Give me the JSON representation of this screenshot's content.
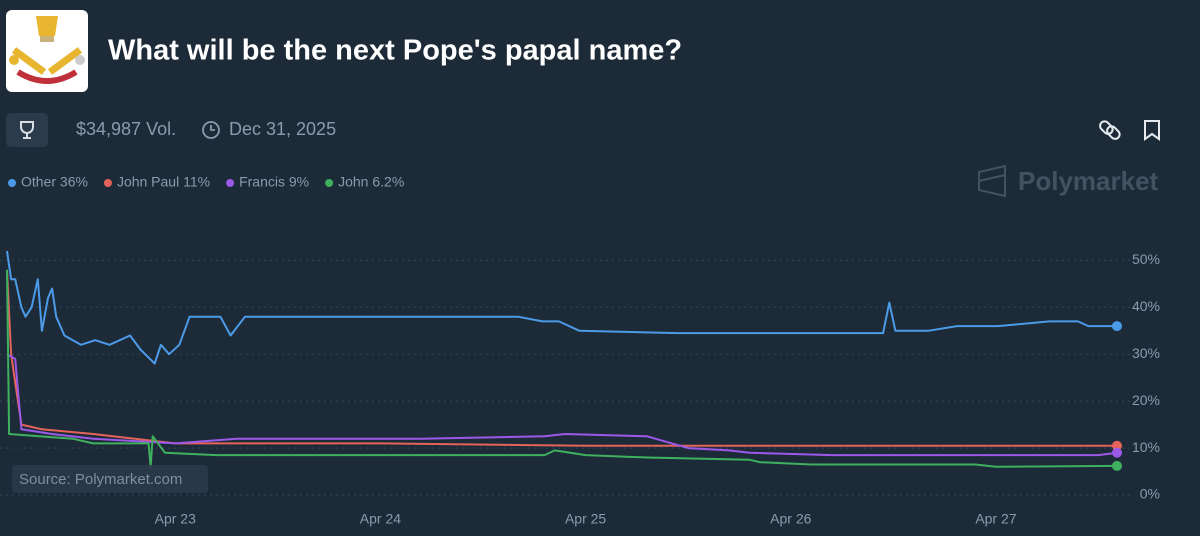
{
  "header": {
    "title": "What will be the next Pope's papal name?",
    "volume": "$34,987 Vol.",
    "end_date": "Dec 31, 2025",
    "watermark": "Polymarket",
    "source": "Source: Polymarket.com"
  },
  "chart_data": {
    "type": "line",
    "xlim": [
      22.18,
      27.59
    ],
    "xticks": [
      {
        "value": 23,
        "label": "Apr 23"
      },
      {
        "value": 24,
        "label": "Apr 24"
      },
      {
        "value": 25,
        "label": "Apr 25"
      },
      {
        "value": 26,
        "label": "Apr 26"
      },
      {
        "value": 27,
        "label": "Apr 27"
      }
    ],
    "ylim": [
      0,
      52
    ],
    "yticks": [
      {
        "value": 0,
        "label": "0%"
      },
      {
        "value": 10,
        "label": "10%"
      },
      {
        "value": 20,
        "label": "20%"
      },
      {
        "value": 30,
        "label": "30%"
      },
      {
        "value": 40,
        "label": "40%"
      },
      {
        "value": 50,
        "label": "50%"
      }
    ],
    "grid": true,
    "series": [
      {
        "name": "Other 36%",
        "color": "#4c9be8",
        "x": [
          22.18,
          22.2,
          22.22,
          22.25,
          22.27,
          22.3,
          22.33,
          22.35,
          22.38,
          22.4,
          22.42,
          22.46,
          22.54,
          22.61,
          22.68,
          22.78,
          22.83,
          22.9,
          22.93,
          22.97,
          23.02,
          23.07,
          23.22,
          23.27,
          23.34,
          23.51,
          24.09,
          24.67,
          24.79,
          24.87,
          24.97,
          25.45,
          26.45,
          26.48,
          26.51,
          26.67,
          26.81,
          27.01,
          27.26,
          27.4,
          27.45,
          27.59
        ],
        "values": [
          52,
          46,
          46,
          40,
          38,
          40,
          46,
          35,
          42,
          44,
          38,
          34,
          32,
          33,
          32,
          34,
          31,
          28,
          32,
          30,
          32,
          38,
          38,
          34,
          38,
          38,
          38,
          38,
          37,
          37,
          35,
          34.5,
          34.5,
          41,
          35,
          35,
          36,
          36,
          37,
          37,
          36,
          36
        ]
      },
      {
        "name": "John Paul 11%",
        "color": "#e5635a",
        "x": [
          22.18,
          22.2,
          22.25,
          22.35,
          22.6,
          23.0,
          24.0,
          25.0,
          26.0,
          27.59
        ],
        "values": [
          48,
          30,
          15,
          14,
          13,
          11,
          11,
          10.5,
          10.5,
          10.5
        ]
      },
      {
        "name": "Francis 9%",
        "color": "#9b59e8",
        "x": [
          22.18,
          22.22,
          22.25,
          22.4,
          22.6,
          23.0,
          23.3,
          24.2,
          24.8,
          24.9,
          25.3,
          25.5,
          25.7,
          25.8,
          26.2,
          27.5,
          27.59
        ],
        "values": [
          30,
          29,
          14,
          13,
          12,
          11,
          12,
          12,
          12.5,
          13,
          12.5,
          10,
          9.5,
          9,
          8.5,
          8.5,
          9
        ]
      },
      {
        "name": "John 6.2%",
        "color": "#3fb15e",
        "x": [
          22.18,
          22.19,
          22.5,
          22.6,
          22.87,
          22.88,
          22.89,
          22.95,
          23.2,
          24.0,
          24.8,
          24.85,
          25.0,
          25.3,
          25.8,
          25.85,
          26.1,
          26.9,
          27.0,
          27.59
        ],
        "values": [
          48,
          13,
          12,
          11,
          11,
          6,
          12.5,
          9,
          8.5,
          8.5,
          8.5,
          9.5,
          8.5,
          8,
          7.5,
          7,
          6.5,
          6.5,
          6,
          6.2
        ]
      }
    ]
  }
}
